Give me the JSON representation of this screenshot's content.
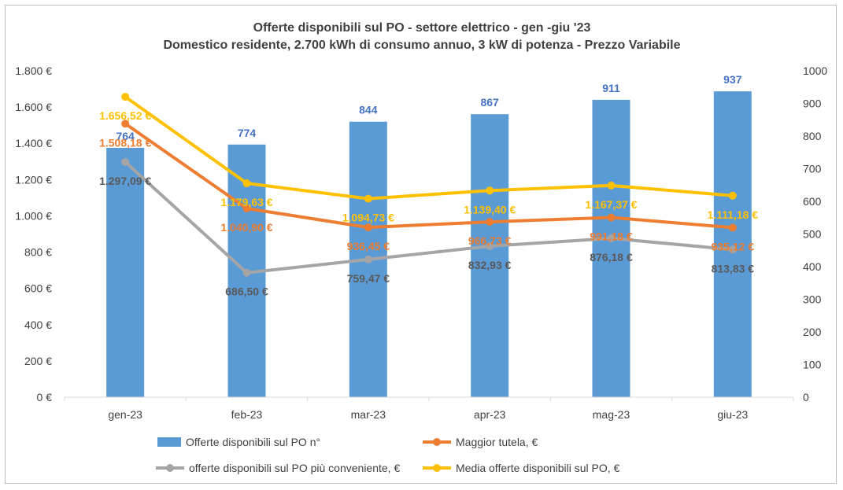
{
  "chart_data": {
    "type": "bar",
    "title": "Offerte disponibili sul PO - settore elettrico - gen -giu '23",
    "subtitle": "Domestico residente, 2.700 kWh di consumo annuo, 3 kW di potenza - Prezzo Variabile",
    "categories": [
      "gen-23",
      "feb-23",
      "mar-23",
      "apr-23",
      "mag-23",
      "giu-23"
    ],
    "y_left": {
      "ylim": [
        0,
        1800
      ],
      "ticks": [
        0,
        200,
        400,
        600,
        800,
        1000,
        1200,
        1400,
        1600,
        1800
      ],
      "tick_labels": [
        "0 €",
        "200 €",
        "400 €",
        "600 €",
        "800 €",
        "1.000 €",
        "1.200 €",
        "1.400 €",
        "1.600 €",
        "1.800 €"
      ]
    },
    "y_right": {
      "ylim": [
        0,
        1000
      ],
      "ticks": [
        0,
        100,
        200,
        300,
        400,
        500,
        600,
        700,
        800,
        900,
        1000
      ],
      "tick_labels": [
        "0",
        "100",
        "200",
        "300",
        "400",
        "500",
        "600",
        "700",
        "800",
        "900",
        "1000"
      ]
    },
    "grid": false,
    "legend_position": "bottom",
    "series": [
      {
        "name": "Offerte disponibili sul PO n°",
        "type": "bar",
        "axis": "right",
        "color": "#5b9bd5",
        "label_color": "#4472c4",
        "values": [
          764,
          774,
          844,
          867,
          911,
          937
        ],
        "labels": [
          "764",
          "774",
          "844",
          "867",
          "911",
          "937"
        ]
      },
      {
        "name": "Maggior tutela, €",
        "type": "line",
        "axis": "left",
        "color": "#ed7d31",
        "values": [
          1508.18,
          1040.9,
          936.45,
          966.73,
          991.18,
          935.12
        ],
        "labels": [
          "1.508,18 €",
          "1.040,90 €",
          "936,45 €",
          "966,73 €",
          "991,18 €",
          "935,12 €"
        ]
      },
      {
        "name": "offerte disponibili sul PO più conveniente, €",
        "type": "line",
        "axis": "left",
        "color": "#a5a5a5",
        "label_color": "#595959",
        "values": [
          1297.09,
          686.5,
          759.47,
          832.93,
          876.18,
          813.83
        ],
        "labels": [
          "1.297,09 €",
          "686,50 €",
          "759,47 €",
          "832,93 €",
          "876,18 €",
          "813,83 €"
        ]
      },
      {
        "name": "Media offerte disponibili sul PO, €",
        "type": "line",
        "axis": "left",
        "color": "#ffc000",
        "values": [
          1656.52,
          1179.63,
          1094.73,
          1139.4,
          1167.37,
          1111.18
        ],
        "labels": [
          "1.656,52 €",
          "1.179,63 €",
          "1.094,73 €",
          "1.139,40 €",
          "1.167,37 €",
          "1.111,18 €"
        ]
      }
    ]
  }
}
